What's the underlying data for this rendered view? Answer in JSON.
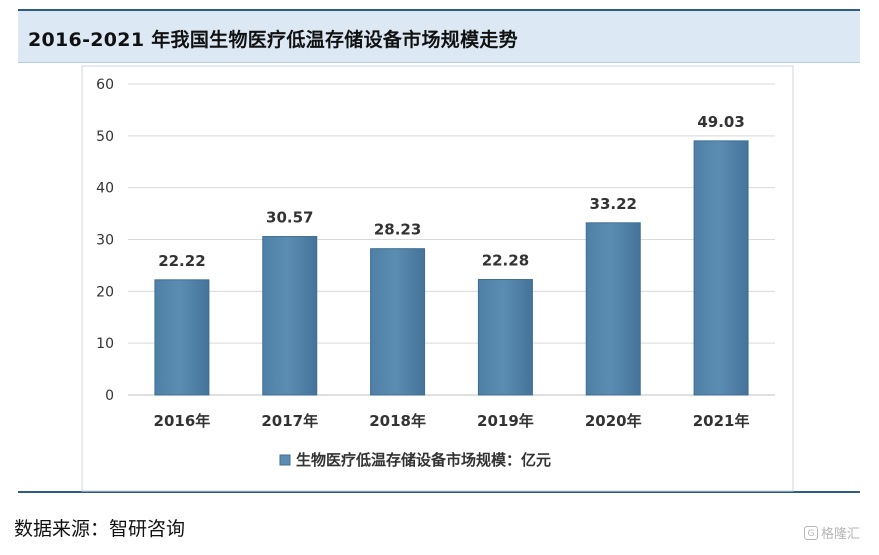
{
  "header": {
    "title": "2016-2021 年我国生物医疗低温存储设备市场规模走势"
  },
  "chart_data": {
    "type": "bar",
    "categories": [
      "2016年",
      "2017年",
      "2018年",
      "2019年",
      "2020年",
      "2021年"
    ],
    "series": [
      {
        "name": "生物医疗低温存储设备市场规模：亿元",
        "values": [
          22.22,
          30.57,
          28.23,
          22.28,
          33.22,
          49.03
        ]
      }
    ],
    "data_labels": [
      "22.22",
      "30.57",
      "28.23",
      "22.28",
      "33.22",
      "49.03"
    ],
    "yticks": [
      "0",
      "10",
      "20",
      "30",
      "40",
      "50",
      "60"
    ],
    "ylim": [
      0,
      60
    ],
    "grid": true,
    "legend_position": "bottom",
    "colors": {
      "bar": "#5b8db3",
      "bar_edge": "#3f6e95",
      "grid": "#d9d9d9"
    }
  },
  "footer": {
    "source": "数据来源：智研咨询"
  },
  "watermark": {
    "logo": "G",
    "text": "格隆汇"
  }
}
